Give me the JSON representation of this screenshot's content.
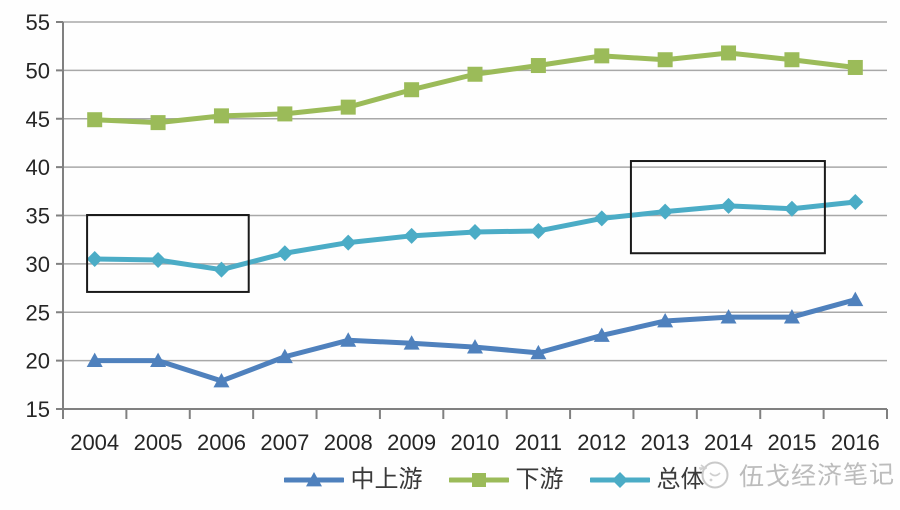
{
  "chart_data": {
    "type": "line",
    "title": "",
    "xlabel": "",
    "ylabel": "",
    "categories": [
      "2004",
      "2005",
      "2006",
      "2007",
      "2008",
      "2009",
      "2010",
      "2011",
      "2012",
      "2013",
      "2014",
      "2015",
      "2016"
    ],
    "series": [
      {
        "name": "中上游",
        "color": "#4f81bd",
        "marker": "triangle",
        "values": [
          20.0,
          20.0,
          17.9,
          20.4,
          22.1,
          21.8,
          21.4,
          20.8,
          22.6,
          24.1,
          24.5,
          24.5,
          26.3
        ]
      },
      {
        "name": "下游",
        "color": "#9bbb59",
        "marker": "square",
        "values": [
          44.9,
          44.6,
          45.3,
          45.5,
          46.2,
          48.0,
          49.6,
          50.5,
          51.5,
          51.1,
          51.8,
          51.1,
          50.3
        ]
      },
      {
        "name": "总体",
        "color": "#4bacc6",
        "marker": "diamond",
        "values": [
          30.5,
          30.4,
          29.4,
          31.1,
          32.2,
          32.9,
          33.3,
          33.4,
          34.7,
          35.4,
          36.0,
          35.7,
          36.4
        ]
      }
    ],
    "ylim": [
      15,
      55
    ],
    "yticks": [
      15,
      20,
      25,
      30,
      35,
      40,
      45,
      50,
      55
    ],
    "grid": true,
    "legend_position": "bottom",
    "axis_color": "#808080",
    "grid_color": "#a8a8a8",
    "tick_label_color": "#262626",
    "annotations": [
      {
        "shape": "rect",
        "purpose": "highlight-2004-2006-dip",
        "index_range": [
          -0.12,
          2.43
        ],
        "value_range": [
          27.1,
          35.05
        ],
        "stroke": "#1a1a1a"
      },
      {
        "shape": "rect",
        "purpose": "highlight-2013-2015-plateau",
        "index_range": [
          8.46,
          11.52
        ],
        "value_range": [
          31.1,
          40.63
        ],
        "stroke": "#1a1a1a"
      }
    ]
  },
  "legend": {
    "items": [
      "中上游",
      "下游",
      "总体"
    ]
  },
  "watermark": {
    "text": "伍戈经济笔记",
    "icon": "media-logo-circle",
    "color": "#bcbcbc"
  }
}
